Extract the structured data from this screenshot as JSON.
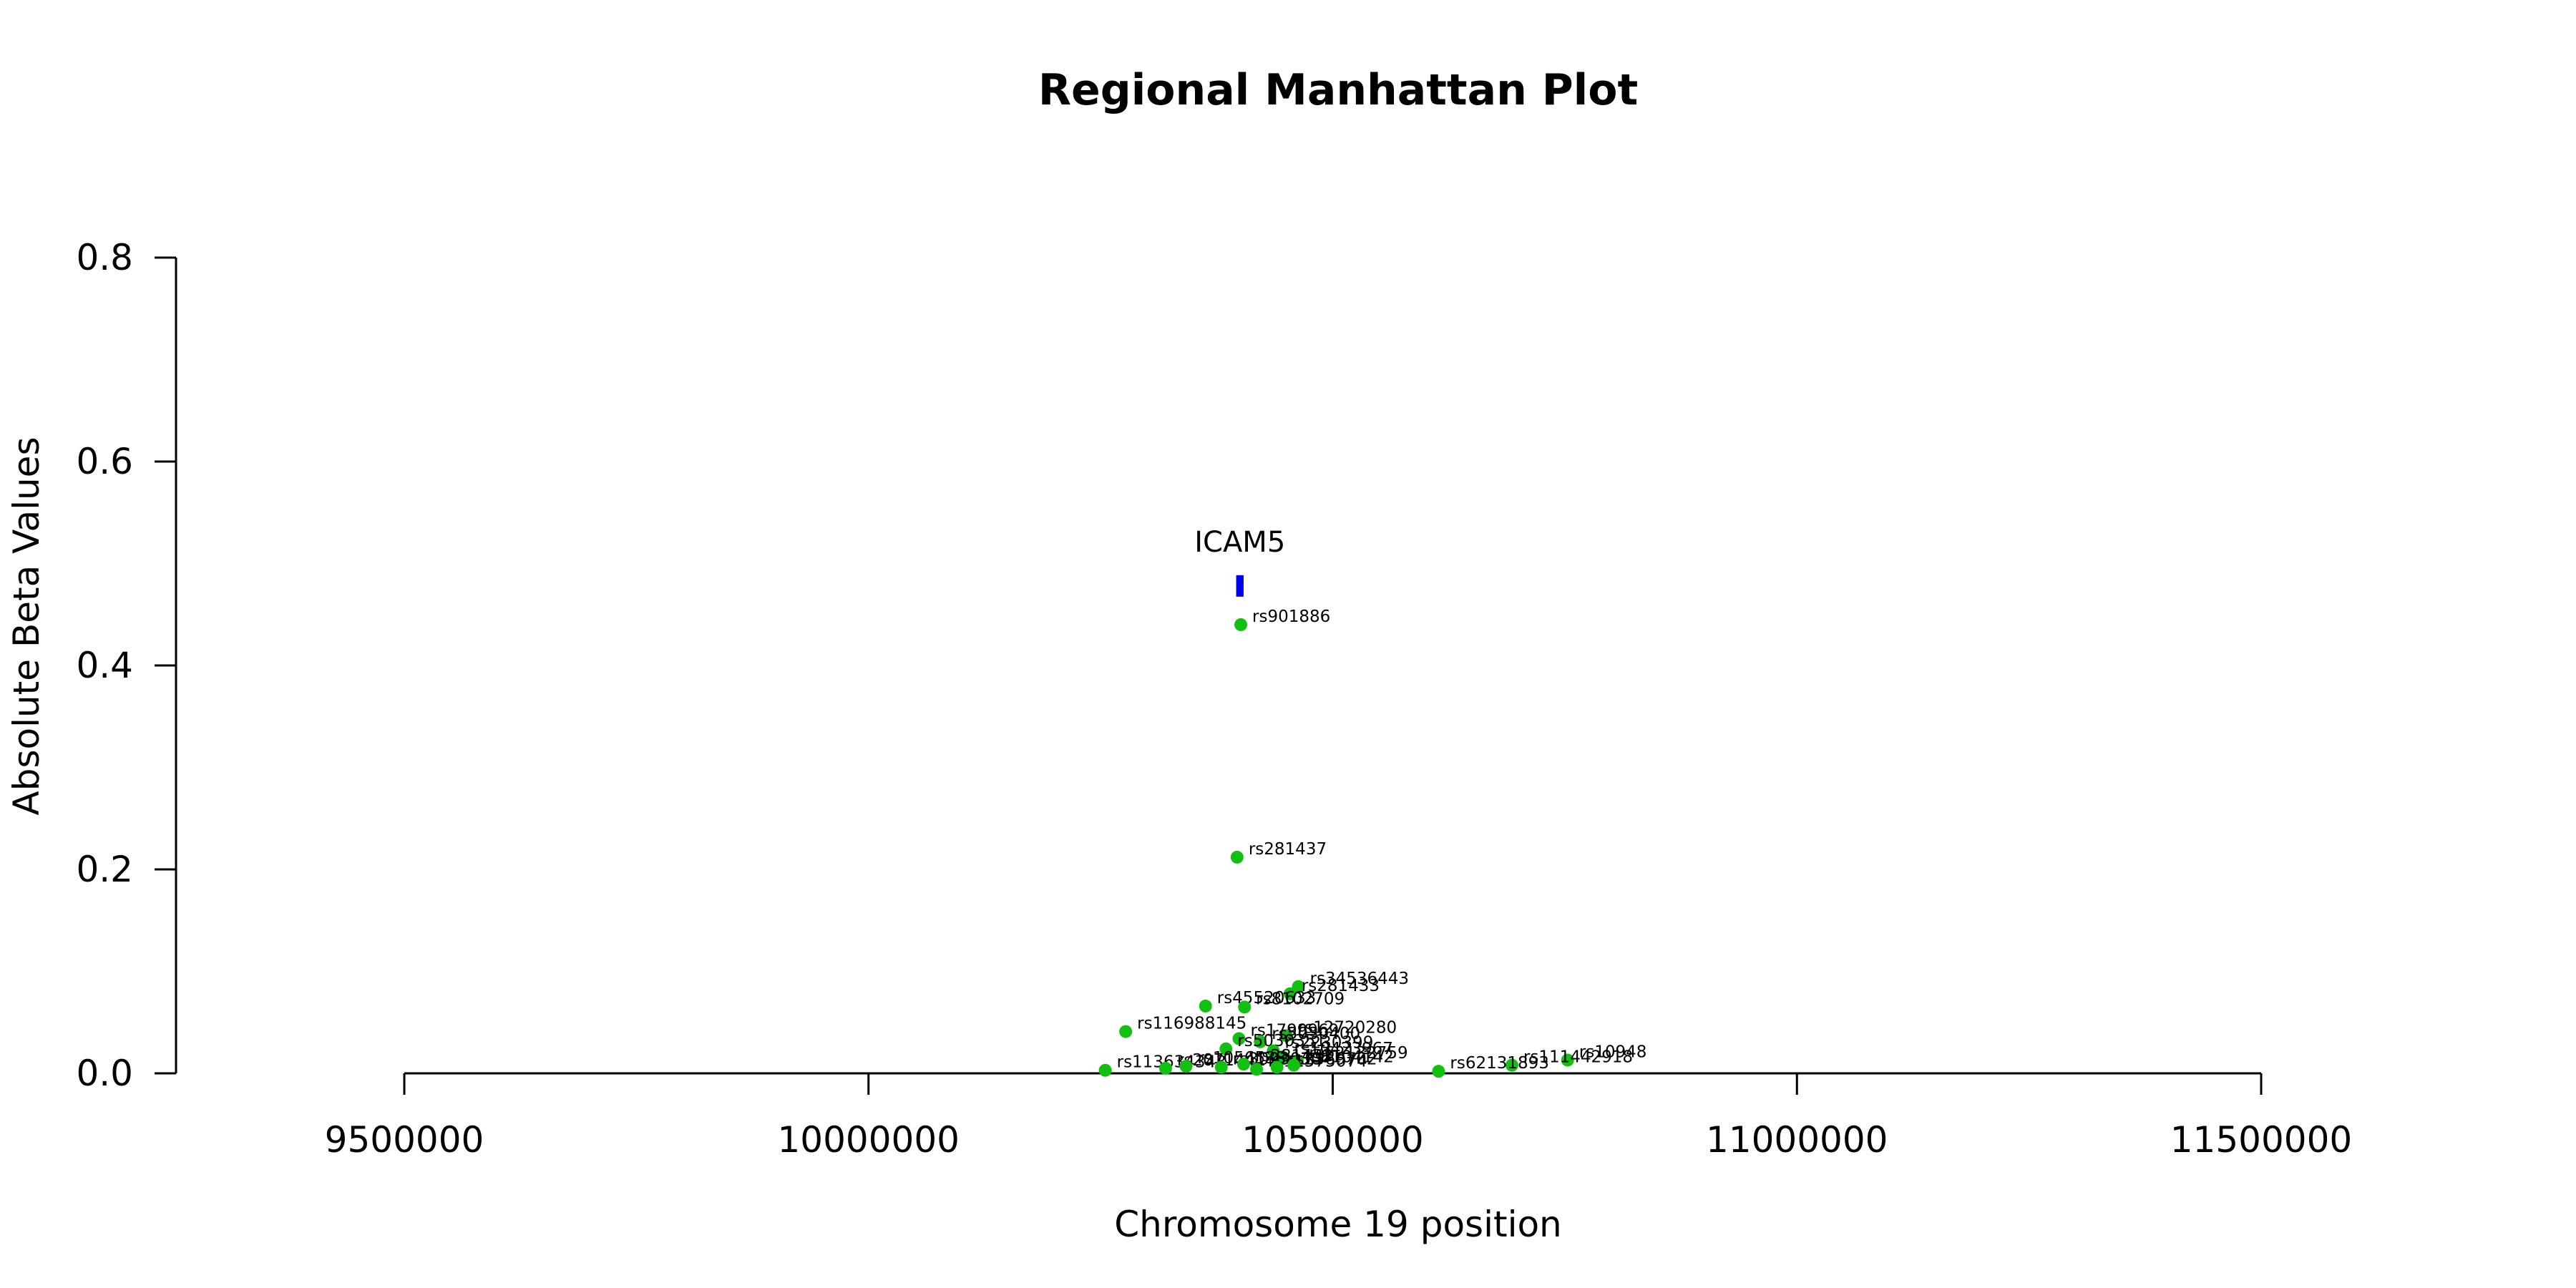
{
  "chart_data": {
    "type": "scatter",
    "title": "Regional Manhattan Plot",
    "xlabel": "Chromosome 19 position",
    "ylabel": "Absolute Beta Values",
    "xlim": [
      9500000,
      11500000
    ],
    "ylim": [
      0,
      0.8
    ],
    "x_ticks": [
      "9500000",
      "10000000",
      "10500000",
      "11000000",
      "11500000"
    ],
    "y_ticks": [
      "0.0",
      "0.2",
      "0.4",
      "0.6",
      "0.8"
    ],
    "grid": false,
    "legend": "none",
    "point_color": "#11c011",
    "gene_color": "#0000ee",
    "genes": [
      {
        "name": "ICAM5",
        "start": 10396000,
        "end": 10404000,
        "y": 0.478
      }
    ],
    "points": [
      {
        "label": "rs901886",
        "x": 10401000,
        "y": 0.44
      },
      {
        "label": "rs281437",
        "x": 10397000,
        "y": 0.212
      },
      {
        "label": "rs34536443",
        "x": 10463000,
        "y": 0.085
      },
      {
        "label": "rs281433",
        "x": 10454000,
        "y": 0.078
      },
      {
        "label": "rs45520633",
        "x": 10363000,
        "y": 0.066
      },
      {
        "label": "rs8102709",
        "x": 10405000,
        "y": 0.065
      },
      {
        "label": "rs116988145",
        "x": 10277000,
        "y": 0.041
      },
      {
        "label": "rs12720280",
        "x": 10450000,
        "y": 0.037
      },
      {
        "label": "rs1799969",
        "x": 10399000,
        "y": 0.034
      },
      {
        "label": "rs5030400",
        "x": 10422000,
        "y": 0.031
      },
      {
        "label": "rs5030351",
        "x": 10385000,
        "y": 0.024
      },
      {
        "label": "rs2230399",
        "x": 10436000,
        "y": 0.022
      },
      {
        "label": "rs10423967",
        "x": 10446000,
        "y": 0.016
      },
      {
        "label": "rs62132759",
        "x": 10462000,
        "y": 0.012
      },
      {
        "label": "rs10948",
        "x": 10753000,
        "y": 0.013
      },
      {
        "label": "rs111442918",
        "x": 10693000,
        "y": 0.008
      },
      {
        "label": "rs113634343",
        "x": 10255000,
        "y": 0.003
      },
      {
        "label": "rs62131893",
        "x": 10614000,
        "y": 0.002
      },
      {
        "label": "rs2071441",
        "x": 10320000,
        "y": 0.005
      },
      {
        "label": "rs1056538",
        "x": 10342000,
        "y": 0.007
      },
      {
        "label": "rs3093030",
        "x": 10380000,
        "y": 0.006
      },
      {
        "label": "rs281432",
        "x": 10404000,
        "y": 0.009
      },
      {
        "label": "rs11575074",
        "x": 10418000,
        "y": 0.004
      },
      {
        "label": "rs2569702",
        "x": 10440000,
        "y": 0.006
      },
      {
        "label": "rs8104142",
        "x": 10458000,
        "y": 0.008
      }
    ]
  }
}
